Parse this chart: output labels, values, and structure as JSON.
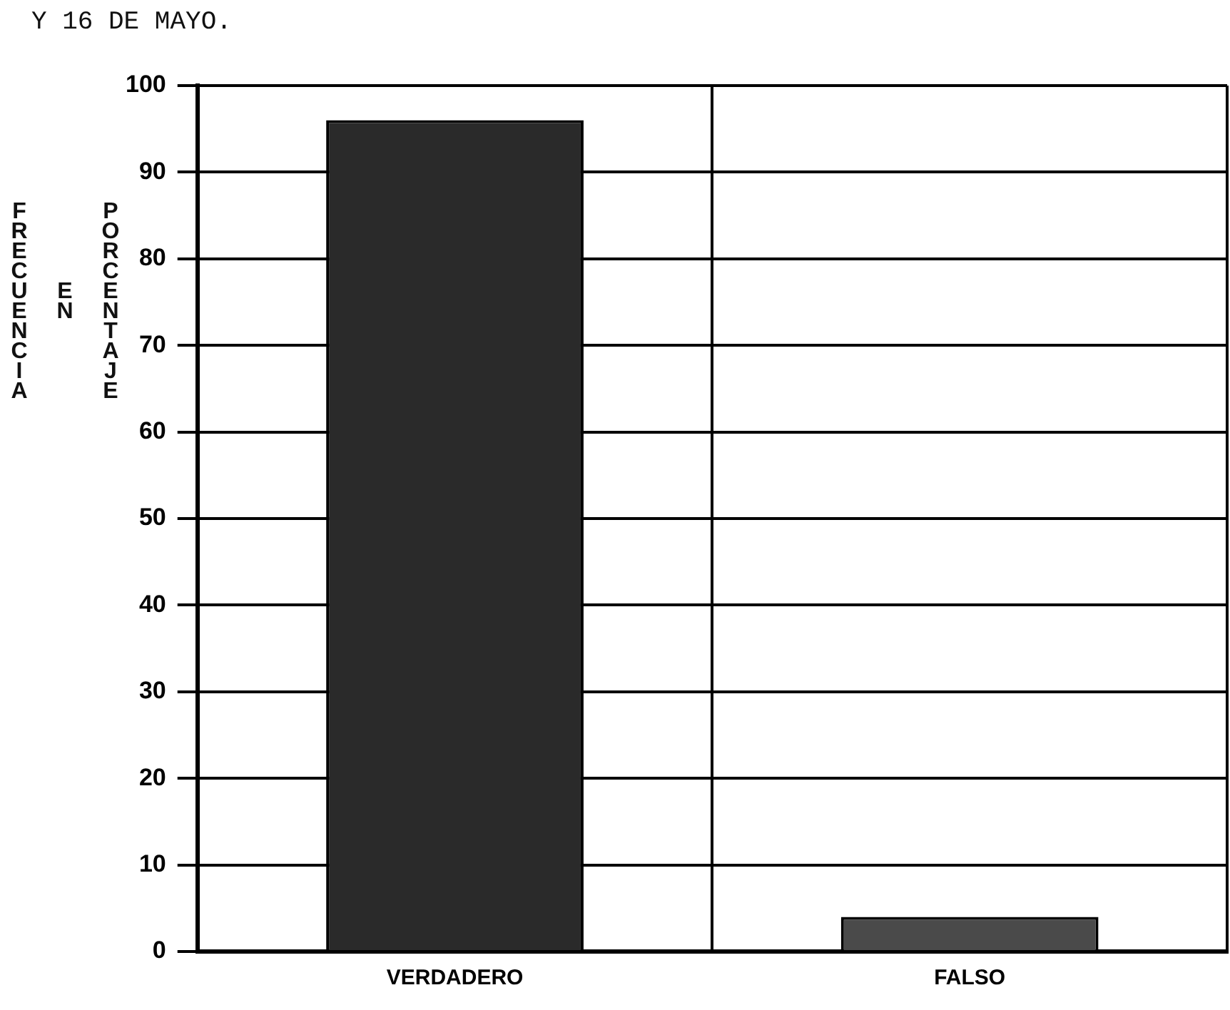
{
  "chart_data": {
    "type": "bar",
    "title": "Y 16 DE MAYO.",
    "ylabel": [
      "FRECUENCIA",
      "EN",
      "PORCENTAJE"
    ],
    "categories": [
      "VERDADERO",
      "FALSO"
    ],
    "values": [
      96,
      4
    ],
    "colors": [
      "#2a2a2a",
      "#4a4a4a"
    ],
    "ylim": [
      0,
      100
    ],
    "yticks": [
      0,
      10,
      20,
      30,
      40,
      50,
      60,
      70,
      80,
      90,
      100
    ],
    "grid": true
  }
}
